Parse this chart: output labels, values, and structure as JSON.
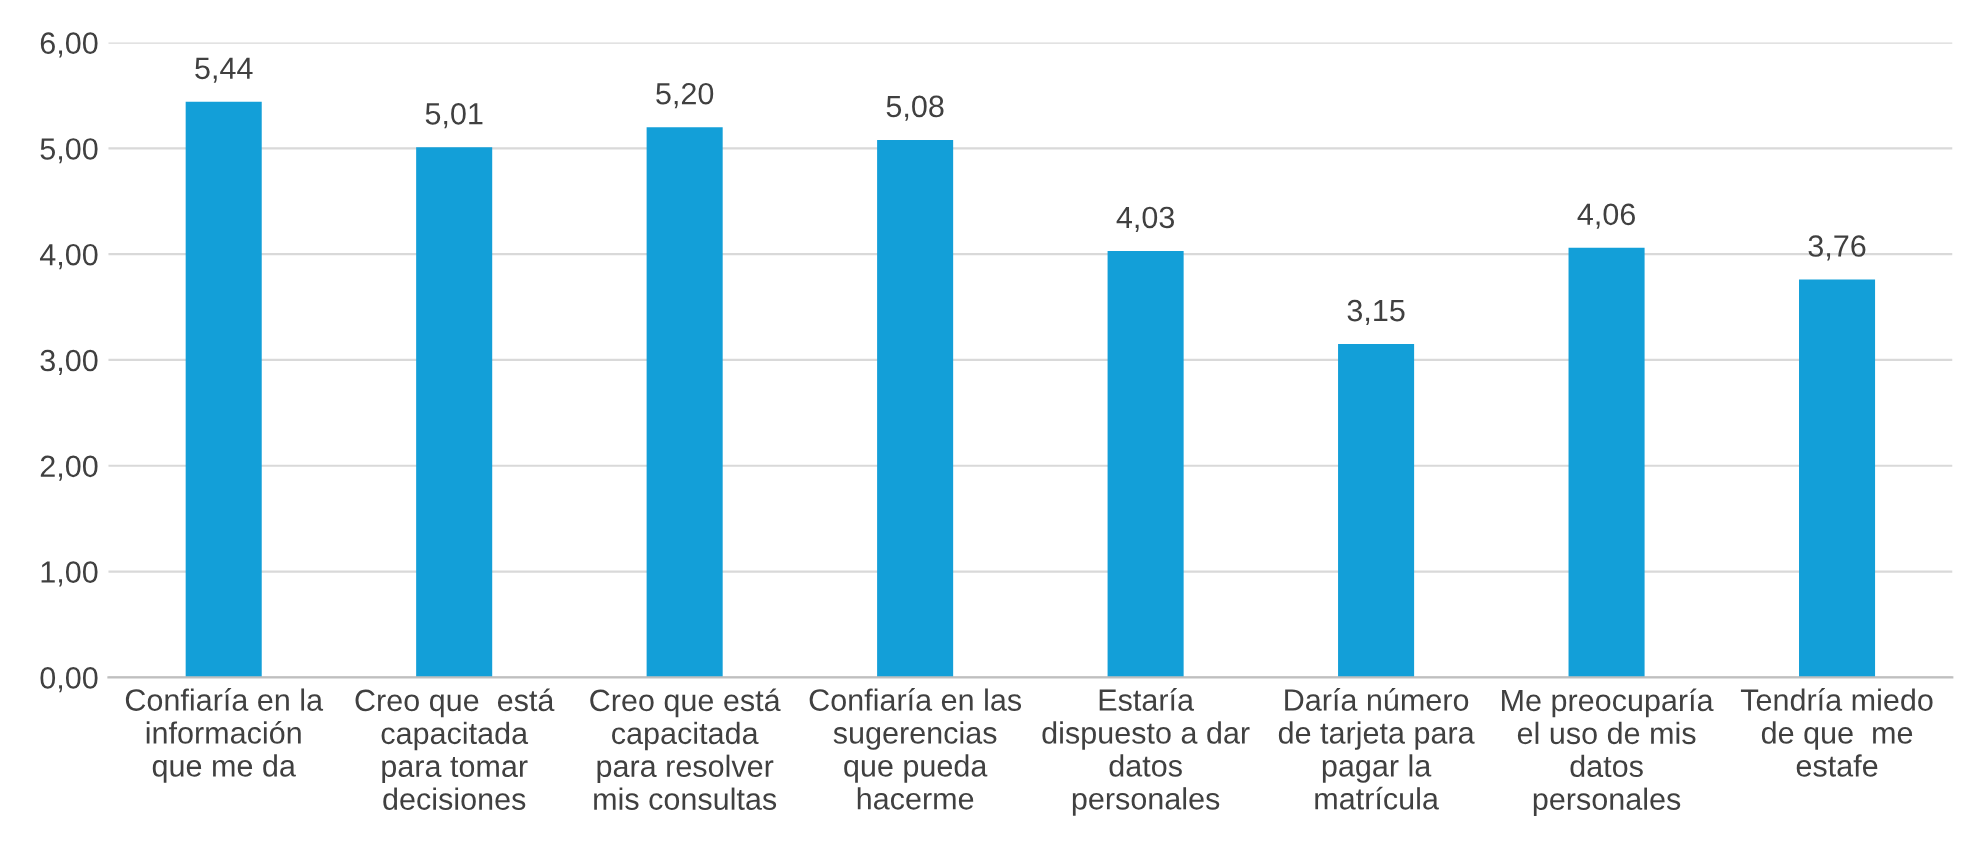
{
  "chart_data": {
    "type": "bar",
    "categories": [
      "Confiaría en la\ninformación\nque me da",
      "Creo que  está\ncapacitada\npara tomar\ndecisiones",
      "Creo que está\ncapacitada\npara resolver\nmis consultas",
      "Confiaría en las\nsugerencias\nque pueda\nhacerme",
      "Estaría\ndispuesto a dar\ndatos\npersonales",
      "Daría número\nde tarjeta para\npagar la\nmatrícula",
      "Me preocuparía\nel uso de mis\ndatos\npersonales",
      "Tendría miedo\nde que  me\nestafe"
    ],
    "values": [
      5.44,
      5.01,
      5.2,
      5.08,
      4.03,
      3.15,
      4.06,
      3.76
    ],
    "value_labels": [
      "5,44",
      "5,01",
      "5,20",
      "5,08",
      "4,03",
      "3,15",
      "4,06",
      "3,76"
    ],
    "color": "#139fd8",
    "ylim": [
      0,
      6
    ],
    "yticks": [
      {
        "value": 0,
        "label": "0,00"
      },
      {
        "value": 1,
        "label": "1,00"
      },
      {
        "value": 2,
        "label": "2,00"
      },
      {
        "value": 3,
        "label": "3,00"
      },
      {
        "value": 4,
        "label": "4,00"
      },
      {
        "value": 5,
        "label": "5,00"
      },
      {
        "value": 6,
        "label": "6,00"
      }
    ],
    "grid": "y",
    "legend": false
  }
}
